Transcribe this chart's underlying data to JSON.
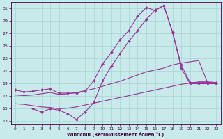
{
  "xlabel": "Windchill (Refroidissement éolien,°C)",
  "bg_color": "#c8eaea",
  "grid_color": "#a8d4d4",
  "line_color": "#993399",
  "x_ticks": [
    0,
    1,
    2,
    3,
    4,
    5,
    6,
    7,
    8,
    9,
    10,
    11,
    12,
    13,
    14,
    15,
    16,
    17,
    18,
    19,
    20,
    21,
    22,
    23
  ],
  "y_ticks": [
    13,
    15,
    17,
    19,
    21,
    23,
    25,
    27,
    29,
    31
  ],
  "ylim": [
    12.5,
    32.0
  ],
  "xlim": [
    -0.5,
    23.5
  ],
  "line1_x": [
    0,
    1,
    2,
    3,
    4,
    5,
    6,
    7,
    8,
    9,
    10,
    11,
    12,
    13,
    14,
    15,
    16,
    17,
    18,
    19,
    20,
    21,
    22,
    23
  ],
  "line1_y": [
    18.0,
    17.7,
    17.8,
    18.0,
    18.2,
    17.5,
    17.5,
    17.5,
    17.8,
    19.5,
    22.2,
    24.0,
    26.0,
    27.5,
    29.8,
    31.2,
    30.7,
    31.5,
    27.2,
    21.5,
    19.0,
    19.0,
    19.0,
    19.0
  ],
  "line2_x": [
    2,
    3,
    4,
    5,
    6,
    7,
    8,
    9,
    10,
    11,
    12,
    13,
    14,
    15,
    16,
    17,
    18,
    19,
    20,
    21,
    22,
    23
  ],
  "line2_y": [
    15.0,
    14.5,
    15.0,
    14.8,
    14.2,
    13.3,
    14.5,
    16.0,
    19.5,
    21.8,
    23.8,
    25.8,
    27.5,
    29.3,
    30.8,
    31.5,
    27.3,
    22.0,
    19.2,
    19.2,
    19.2,
    19.2
  ],
  "line3_x": [
    0,
    1,
    2,
    3,
    4,
    5,
    6,
    7,
    8,
    9,
    10,
    11,
    12,
    13,
    14,
    15,
    16,
    17,
    18,
    19,
    20,
    21,
    22,
    23
  ],
  "line3_y": [
    17.2,
    17.1,
    17.2,
    17.4,
    17.6,
    17.3,
    17.4,
    17.6,
    17.9,
    18.2,
    18.6,
    19.0,
    19.4,
    19.9,
    20.4,
    20.9,
    21.2,
    21.5,
    22.0,
    22.3,
    22.5,
    22.7,
    19.2,
    19.1
  ],
  "line4_x": [
    0,
    1,
    2,
    3,
    4,
    5,
    6,
    7,
    8,
    9,
    10,
    11,
    12,
    13,
    14,
    15,
    16,
    17,
    18,
    19,
    20,
    21,
    22,
    23
  ],
  "line4_y": [
    15.8,
    15.7,
    15.5,
    15.3,
    15.2,
    15.0,
    15.1,
    15.3,
    15.6,
    15.9,
    16.2,
    16.5,
    16.8,
    17.1,
    17.4,
    17.7,
    18.0,
    18.3,
    18.6,
    18.9,
    19.1,
    19.3,
    19.3,
    19.2
  ]
}
